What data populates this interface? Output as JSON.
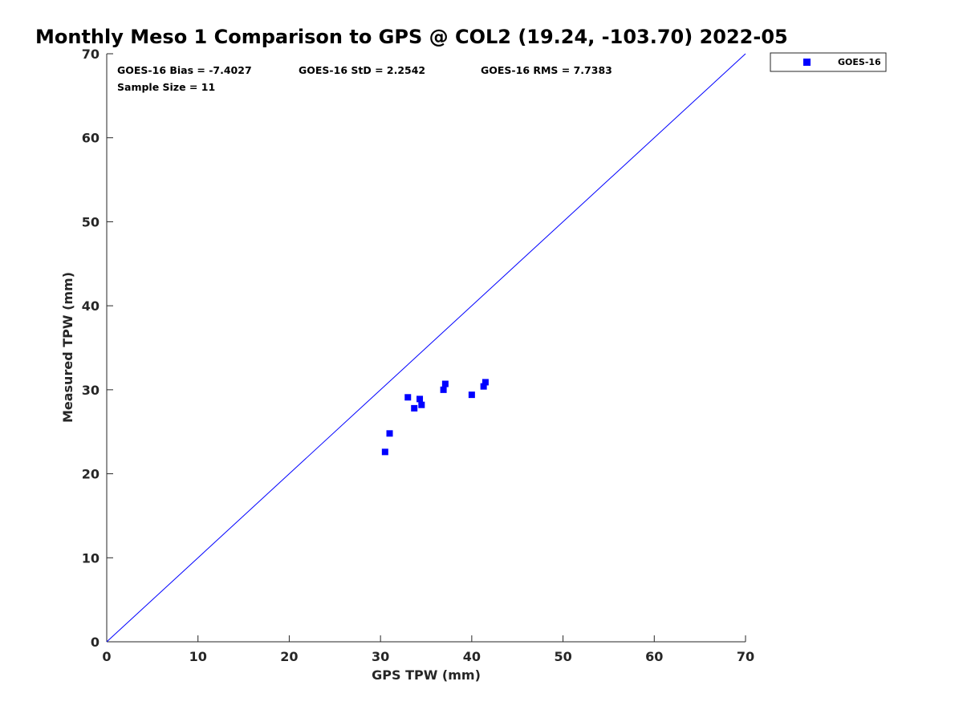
{
  "chart_data": {
    "type": "scatter",
    "title": "Monthly Meso 1 Comparison to GPS @ COL2 (19.24, -103.70) 2022-05",
    "xlabel": "GPS TPW (mm)",
    "ylabel": "Measured TPW (mm)",
    "xlim": [
      0,
      70
    ],
    "ylim": [
      0,
      70
    ],
    "xticks": [
      "0",
      "10",
      "20",
      "30",
      "40",
      "50",
      "60",
      "70"
    ],
    "yticks": [
      "0",
      "10",
      "20",
      "30",
      "40",
      "50",
      "60",
      "70"
    ],
    "grid": false,
    "legend_position": "outside top-right",
    "reference_line": {
      "from": [
        0,
        0
      ],
      "to": [
        70,
        70
      ],
      "color": "#0000ff"
    },
    "stats": {
      "bias": "GOES-16 Bias = -7.4027",
      "std": "GOES-16 StD = 2.2542",
      "rms": "GOES-16 RMS = 7.7383",
      "sample_size": "Sample Size = 11"
    },
    "series": [
      {
        "name": "GOES-16",
        "color": "#0000ff",
        "marker": "square",
        "points": [
          [
            30.5,
            22.6
          ],
          [
            31.0,
            24.8
          ],
          [
            33.0,
            29.1
          ],
          [
            33.7,
            27.8
          ],
          [
            34.3,
            28.9
          ],
          [
            34.5,
            28.2
          ],
          [
            36.9,
            30.0
          ],
          [
            37.1,
            30.7
          ],
          [
            40.0,
            29.4
          ],
          [
            41.3,
            30.4
          ],
          [
            41.5,
            30.9
          ]
        ]
      }
    ]
  }
}
